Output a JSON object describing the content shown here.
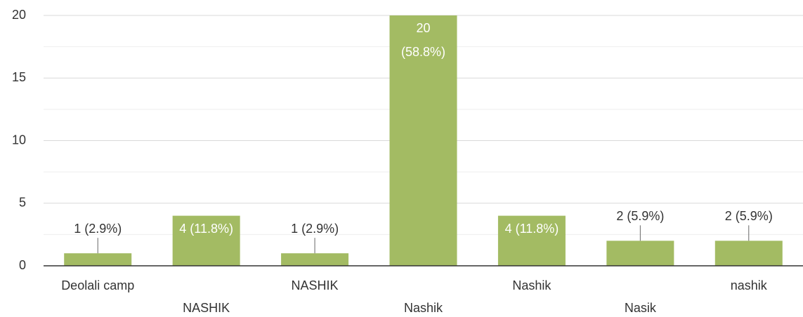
{
  "chart_data": {
    "type": "bar",
    "categories": [
      "Deolali camp",
      "NASHIK",
      "NASHIK",
      "Nashik",
      "Nashik",
      "Nasik",
      "nashik"
    ],
    "values": [
      1,
      4,
      1,
      20,
      4,
      2,
      2
    ],
    "value_labels": [
      "1 (2.9%)",
      "4 (11.8%)",
      "1 (2.9%)",
      "20 (58.8%)",
      "4 (11.8%)",
      "2 (5.9%)",
      "2 (5.9%)"
    ],
    "color": "#a3bb63",
    "ylim": [
      0,
      20
    ],
    "yticks": [
      0,
      5,
      10,
      15,
      20
    ],
    "yminor": [
      2.5,
      7.5,
      12.5,
      17.5
    ],
    "grid": true
  }
}
